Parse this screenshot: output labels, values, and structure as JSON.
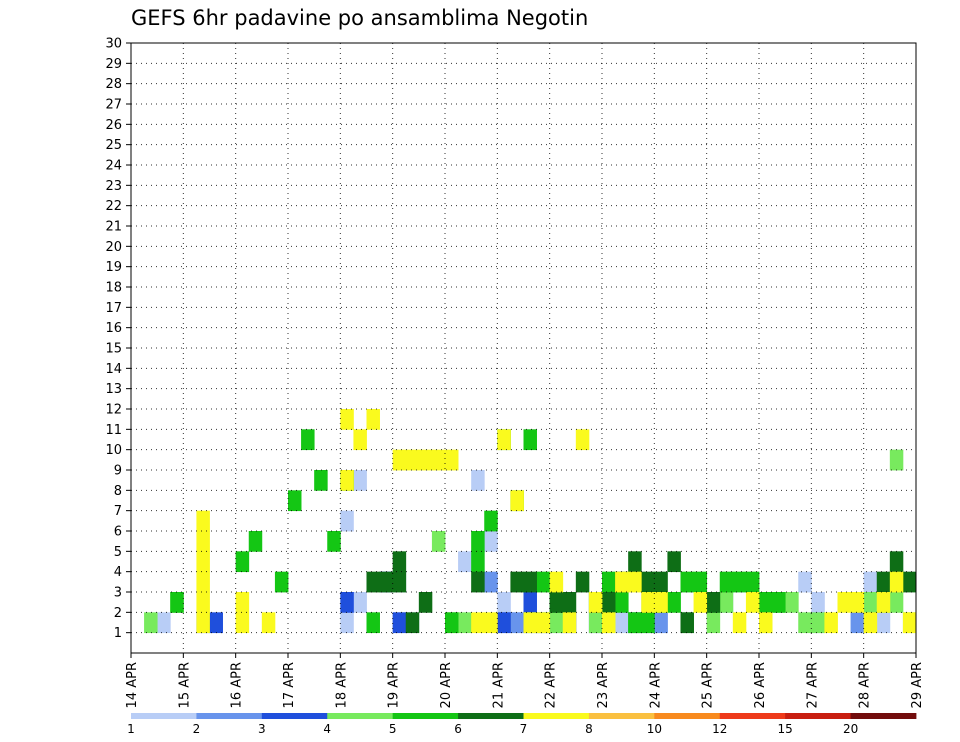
{
  "chart_data": {
    "type": "heatmap",
    "title": "GEFS 6hr padavine po ansamblima Negotin",
    "xlabel": "",
    "ylabel": "",
    "x_tick_labels": [
      "14 APR",
      "15 APR",
      "16 APR",
      "17 APR",
      "18 APR",
      "19 APR",
      "20 APR",
      "21 APR",
      "22 APR",
      "23 APR",
      "24 APR",
      "25 APR",
      "26 APR",
      "27 APR",
      "28 APR",
      "29 APR"
    ],
    "y_tick_labels": [
      "1",
      "2",
      "3",
      "4",
      "5",
      "6",
      "7",
      "8",
      "9",
      "10",
      "11",
      "12",
      "13",
      "14",
      "15",
      "16",
      "17",
      "18",
      "19",
      "20",
      "21",
      "22",
      "23",
      "24",
      "25",
      "26",
      "27",
      "28",
      "29",
      "30"
    ],
    "x_range": [
      0,
      60
    ],
    "y_range": [
      0,
      30
    ],
    "grid": true,
    "legend_levels": [
      "1",
      "2",
      "3",
      "4",
      "5",
      "6",
      "7",
      "8",
      "10",
      "12",
      "15",
      "20"
    ],
    "palette": [
      "#b8cdf6",
      "#6894ec",
      "#1f4fdc",
      "#78ea5e",
      "#14c614",
      "#0e6e16",
      "#fafa1e",
      "#fac040",
      "#f88a1e",
      "#ee3a1a",
      "#c81e10",
      "#720c0c"
    ],
    "cells": [
      [
        2.7,
        0,
        1
      ],
      [
        16.5,
        0,
        1
      ],
      [
        16.5,
        0,
        6
      ],
      [
        17.5,
        0,
        2
      ],
      [
        17.9,
        0,
        8
      ],
      [
        19.5,
        0,
        3
      ],
      [
        20.5,
        0,
        1
      ],
      [
        20.5,
        0,
        3
      ],
      [
        21.5,
        0,
        1
      ],
      [
        25.5,
        0,
        4
      ],
      [
        26.5,
        0,
        4
      ],
      [
        26.5,
        0,
        8
      ],
      [
        27.5,
        0,
        5
      ],
      [
        28.5,
        0,
        2
      ],
      [
        29.5,
        0,
        1
      ],
      [
        30.2,
        0,
        2
      ],
      [
        33.5,
        0,
        1
      ],
      [
        37.5,
        0,
        1
      ],
      [
        39.5,
        0,
        2
      ],
      [
        40.5,
        0,
        1
      ],
      [
        42.5,
        0,
        1
      ],
      [
        45.5,
        0,
        2
      ],
      [
        51.5,
        0,
        3
      ],
      [
        52.5,
        0,
        2
      ],
      [
        55.5,
        0,
        2
      ],
      [
        56.5,
        0,
        3
      ],
      [
        57.5,
        0,
        1
      ],
      [
        27.5,
        1,
        3
      ],
      [
        28.5,
        1,
        1
      ],
      [
        29.5,
        1,
        1
      ],
      [
        30.5,
        1,
        1
      ],
      [
        32.5,
        1,
        1
      ],
      [
        40.5,
        1,
        1
      ],
      [
        52.5,
        1,
        1
      ],
      [
        55.5,
        1,
        1
      ],
      [
        5.5,
        2,
        1
      ],
      [
        6.5,
        2,
        1
      ],
      [
        16.5,
        2,
        2
      ],
      [
        19.5,
        2,
        3
      ],
      [
        20.5,
        2,
        1
      ],
      [
        28.5,
        2,
        1
      ],
      [
        30.5,
        2,
        2
      ],
      [
        31.5,
        2,
        1
      ],
      [
        33.5,
        2,
        1
      ],
      [
        35.5,
        2,
        1
      ],
      [
        38.5,
        2,
        1
      ],
      [
        39.5,
        2,
        1
      ],
      [
        1.5,
        3,
        1
      ],
      [
        3.5,
        3,
        2
      ],
      [
        23.5,
        3,
        5
      ],
      [
        24.5,
        3,
        1
      ],
      [
        25.5,
        3,
        1
      ],
      [
        30.5,
        3,
        1
      ],
      [
        31.5,
        3,
        1
      ],
      [
        32.5,
        3,
        1
      ],
      [
        35.5,
        3,
        1
      ],
      [
        36.5,
        3,
        1
      ],
      [
        38.5,
        3,
        1
      ],
      [
        42.5,
        3,
        1
      ],
      [
        44.5,
        3,
        1
      ],
      [
        45.5,
        3,
        2
      ],
      [
        48.5,
        3,
        1
      ],
      [
        49.5,
        3,
        2
      ],
      [
        50.5,
        3,
        2
      ],
      [
        51.5,
        3,
        1
      ],
      [
        52.5,
        3,
        1
      ],
      [
        56.5,
        3,
        2
      ],
      [
        57.5,
        3,
        2
      ],
      [
        58.5,
        3,
        2
      ],
      [
        58.5,
        3,
        9
      ],
      [
        59.5,
        3,
        1
      ],
      [
        3.5,
        4,
        2
      ],
      [
        8.5,
        4,
        4
      ],
      [
        9.5,
        4,
        5
      ],
      [
        11.5,
        4,
        3
      ],
      [
        12.5,
        4,
        7
      ],
      [
        13.5,
        4,
        10
      ],
      [
        14.5,
        4,
        8
      ],
      [
        15.5,
        4,
        5
      ],
      [
        16.5,
        4,
        8
      ],
      [
        18.5,
        4,
        1
      ],
      [
        24.5,
        4,
        1
      ],
      [
        26.5,
        4,
        4
      ],
      [
        26.5,
        4,
        5
      ],
      [
        27.5,
        4,
        6
      ],
      [
        28.5,
        4,
        10
      ],
      [
        29.5,
        4,
        7
      ],
      [
        30.5,
        4,
        10
      ],
      [
        31.5,
        4,
        3
      ],
      [
        32.5,
        4,
        2
      ],
      [
        35.5,
        4,
        2
      ],
      [
        36.5,
        4,
        3
      ],
      [
        37.5,
        4,
        2
      ],
      [
        38.5,
        4,
        1
      ],
      [
        39.5,
        4,
        1
      ],
      [
        40.5,
        4,
        2
      ],
      [
        41.5,
        4,
        2
      ],
      [
        42.5,
        4,
        3
      ],
      [
        43.5,
        4,
        3
      ],
      [
        44.5,
        4,
        2
      ],
      [
        45.5,
        4,
        3
      ],
      [
        46.5,
        4,
        3
      ],
      [
        47.5,
        4,
        3
      ],
      [
        48.5,
        4,
        2
      ],
      [
        49.5,
        4,
        2
      ],
      [
        18.5,
        5,
        3
      ],
      [
        19.5,
        5,
        3
      ],
      [
        20.5,
        5,
        3
      ],
      [
        20.5,
        5,
        4
      ],
      [
        21.5,
        5,
        1
      ],
      [
        22.5,
        5,
        2
      ],
      [
        26.5,
        5,
        3
      ],
      [
        29.5,
        5,
        3
      ],
      [
        30.5,
        5,
        3
      ],
      [
        32.5,
        5,
        2
      ],
      [
        33.5,
        5,
        2
      ],
      [
        34.5,
        5,
        3
      ],
      [
        35.5,
        5,
        2
      ],
      [
        36.5,
        5,
        2
      ],
      [
        37.5,
        5,
        3
      ],
      [
        38.5,
        5,
        4
      ],
      [
        39.5,
        5,
        3
      ],
      [
        40.5,
        5,
        3
      ],
      [
        41.5,
        5,
        4
      ],
      [
        42.5,
        5,
        1
      ],
      [
        44.5,
        5,
        2
      ],
      [
        57.5,
        5,
        3
      ],
      [
        58.5,
        5,
        4
      ],
      [
        59.5,
        5,
        3
      ],
      [
        5.5,
        6,
        1
      ],
      [
        5.5,
        6,
        2
      ],
      [
        5.5,
        6,
        3
      ],
      [
        5.5,
        6,
        4
      ],
      [
        5.5,
        6,
        5
      ],
      [
        5.5,
        6,
        6
      ],
      [
        8.5,
        6,
        2
      ],
      [
        8.5,
        6,
        1
      ],
      [
        10.5,
        6,
        1
      ],
      [
        16.5,
        6,
        8
      ],
      [
        16.5,
        6,
        11
      ],
      [
        17.5,
        6,
        10
      ],
      [
        18.5,
        6,
        11
      ],
      [
        20.5,
        6,
        9
      ],
      [
        21.5,
        6,
        9
      ],
      [
        22.5,
        6,
        9
      ],
      [
        23.5,
        6,
        9
      ],
      [
        24.5,
        6,
        9
      ],
      [
        26.5,
        6,
        1
      ],
      [
        27.5,
        6,
        1
      ],
      [
        28.5,
        6,
        10
      ],
      [
        29.5,
        6,
        7
      ],
      [
        30.5,
        6,
        1
      ],
      [
        31.5,
        6,
        1
      ],
      [
        32.5,
        6,
        3
      ],
      [
        33.5,
        6,
        1
      ],
      [
        34.5,
        6,
        10
      ],
      [
        35.5,
        6,
        2
      ],
      [
        36.5,
        6,
        1
      ],
      [
        37.5,
        6,
        3
      ],
      [
        38.5,
        6,
        3
      ],
      [
        39.5,
        6,
        2
      ],
      [
        40.5,
        6,
        2
      ],
      [
        43.5,
        6,
        2
      ],
      [
        46.5,
        6,
        1
      ],
      [
        47.5,
        6,
        2
      ],
      [
        48.5,
        6,
        1
      ],
      [
        53.5,
        6,
        1
      ],
      [
        54.5,
        6,
        2
      ],
      [
        55.5,
        6,
        2
      ],
      [
        56.5,
        6,
        1
      ],
      [
        57.5,
        6,
        2
      ],
      [
        58.5,
        6,
        3
      ],
      [
        59.5,
        6,
        1
      ]
    ]
  }
}
